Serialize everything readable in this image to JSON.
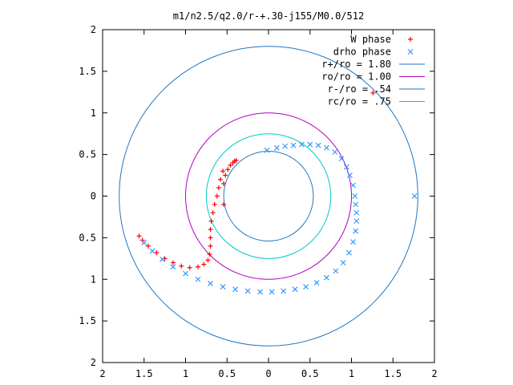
{
  "chart_data": {
    "type": "scatter",
    "title": "m1/n2.5/q2.0/r-+.30-j155/M0.0/512",
    "xlabel": "",
    "ylabel": "",
    "xlim": [
      -2,
      2
    ],
    "ylim": [
      -2,
      2
    ],
    "grid": false,
    "legend_position": "top-right",
    "x_tick_labels": [
      "2",
      "1.5",
      "1",
      "0.5",
      "0",
      "0.5",
      "1",
      "1.5",
      "2"
    ],
    "y_tick_labels": [
      "2",
      "1.5",
      "1",
      "0.5",
      "0",
      "0.5",
      "1",
      "1.5",
      "2"
    ],
    "legend": [
      {
        "label": "W phase",
        "kind": "marker",
        "marker": "plus",
        "color": "#ff0000"
      },
      {
        "label": "drho phase",
        "kind": "marker",
        "marker": "cross",
        "color": "#3399ff"
      },
      {
        "label": "r+/ro = 1.80",
        "kind": "line",
        "color": "#1f77c4"
      },
      {
        "label": "ro/ro = 1.00",
        "kind": "line",
        "color": "#b000c0"
      },
      {
        "label": "r-/ro = .54",
        "kind": "line",
        "color": "#1f77c4"
      },
      {
        "label": "rc/ro = .75",
        "kind": "line",
        "color": "#00c8c8"
      }
    ],
    "circles": [
      {
        "name": "r+/ro",
        "r": 1.8,
        "color": "#1f77c4"
      },
      {
        "name": "ro/ro",
        "r": 1.0,
        "color": "#b000c0"
      },
      {
        "name": "r-/ro",
        "r": 0.54,
        "color": "#1f77c4"
      },
      {
        "name": "rc/ro",
        "r": 0.75,
        "color": "#00c8c8"
      }
    ],
    "series": [
      {
        "name": "W phase",
        "marker": "plus",
        "color": "#ff0000",
        "points": [
          [
            -0.54,
            -0.1
          ],
          [
            -0.54,
            0.15
          ],
          [
            -0.52,
            0.25
          ],
          [
            -0.49,
            0.32
          ],
          [
            -0.46,
            0.37
          ],
          [
            -0.43,
            0.4
          ],
          [
            -0.41,
            0.42
          ],
          [
            -0.39,
            0.43
          ],
          [
            -0.55,
            0.3
          ],
          [
            -0.58,
            0.2
          ],
          [
            -0.6,
            0.1
          ],
          [
            -0.62,
            0.0
          ],
          [
            -0.65,
            -0.1
          ],
          [
            -0.67,
            -0.2
          ],
          [
            -0.69,
            -0.3
          ],
          [
            -0.7,
            -0.4
          ],
          [
            -0.7,
            -0.5
          ],
          [
            -0.7,
            -0.6
          ],
          [
            -0.71,
            -0.7
          ],
          [
            -0.73,
            -0.77
          ],
          [
            -0.78,
            -0.82
          ],
          [
            -0.85,
            -0.85
          ],
          [
            -0.95,
            -0.86
          ],
          [
            -1.05,
            -0.84
          ],
          [
            -1.15,
            -0.8
          ],
          [
            -1.25,
            -0.75
          ],
          [
            -1.35,
            -0.68
          ],
          [
            -1.45,
            -0.6
          ],
          [
            -1.52,
            -0.53
          ],
          [
            -1.56,
            -0.48
          ],
          [
            1.26,
            1.24
          ]
        ]
      },
      {
        "name": "drho phase",
        "marker": "cross",
        "color": "#3399ff",
        "points": [
          [
            -0.02,
            0.55
          ],
          [
            0.1,
            0.58
          ],
          [
            0.2,
            0.6
          ],
          [
            0.3,
            0.61
          ],
          [
            0.4,
            0.62
          ],
          [
            0.5,
            0.62
          ],
          [
            0.6,
            0.61
          ],
          [
            0.7,
            0.58
          ],
          [
            0.8,
            0.53
          ],
          [
            0.88,
            0.45
          ],
          [
            0.94,
            0.35
          ],
          [
            0.98,
            0.25
          ],
          [
            1.02,
            0.13
          ],
          [
            1.04,
            0.0
          ],
          [
            1.05,
            -0.1
          ],
          [
            1.06,
            -0.2
          ],
          [
            1.06,
            -0.3
          ],
          [
            1.05,
            -0.42
          ],
          [
            1.02,
            -0.55
          ],
          [
            0.97,
            -0.68
          ],
          [
            0.9,
            -0.8
          ],
          [
            0.81,
            -0.9
          ],
          [
            0.7,
            -0.98
          ],
          [
            0.58,
            -1.04
          ],
          [
            0.45,
            -1.09
          ],
          [
            0.32,
            -1.12
          ],
          [
            0.18,
            -1.14
          ],
          [
            0.04,
            -1.15
          ],
          [
            -0.1,
            -1.15
          ],
          [
            -0.25,
            -1.14
          ],
          [
            -0.4,
            -1.12
          ],
          [
            -0.55,
            -1.09
          ],
          [
            -0.7,
            -1.05
          ],
          [
            -0.85,
            -1.0
          ],
          [
            -1.0,
            -0.93
          ],
          [
            -1.15,
            -0.85
          ],
          [
            -1.28,
            -0.76
          ],
          [
            -1.4,
            -0.66
          ],
          [
            -1.5,
            -0.56
          ],
          [
            1.76,
            0.0
          ]
        ]
      }
    ]
  }
}
